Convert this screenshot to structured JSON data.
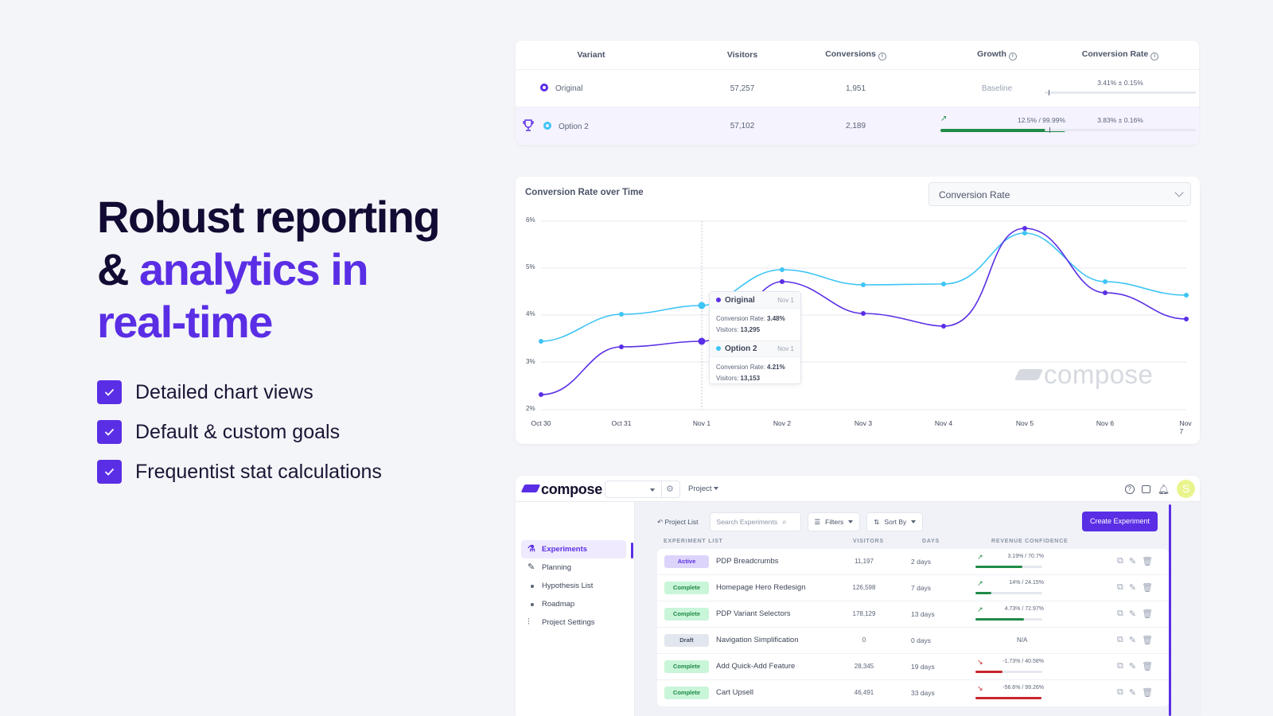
{
  "hero": {
    "title_line1": "Robust reporting",
    "title_amp": "& ",
    "title_accent1": "analytics in",
    "title_accent2": "real-time",
    "accent_color": "#5a2ee5",
    "features": [
      "Detailed chart views",
      "Default & custom goals",
      "Frequentist stat calculations"
    ]
  },
  "variants_table": {
    "headers": {
      "variant": "Variant",
      "visitors": "Visitors",
      "conversions": "Conversions",
      "growth": "Growth",
      "rate": "Conversion Rate"
    },
    "rows": [
      {
        "name": "Original",
        "visitors": "57,257",
        "conversions": "1,951",
        "growth": "Baseline",
        "rate": "3.41% ± 0.15%",
        "color": "#5a2ee5",
        "winner": false
      },
      {
        "name": "Option 2",
        "visitors": "57,102",
        "conversions": "2,189",
        "growth": "12.5% / 99.99%",
        "growth_pct": 100,
        "rate": "3.83% ± 0.16%",
        "color": "#3ec4f5",
        "winner": true
      }
    ]
  },
  "chart": {
    "title": "Conversion Rate over Time",
    "metric_select": "Conversion Rate",
    "watermark": "compose",
    "tooltip": {
      "original": {
        "label": "Original",
        "date": "Nov 1",
        "rate_label": "Conversion Rate:",
        "rate": "3.48%",
        "visitors_label": "Visitors:",
        "visitors": "13,295"
      },
      "option2": {
        "label": "Option 2",
        "date": "Nov 1",
        "rate_label": "Conversion Rate:",
        "rate": "4.21%",
        "visitors_label": "Visitors:",
        "visitors": "13,153"
      }
    }
  },
  "chart_data": {
    "type": "line",
    "title": "Conversion Rate over Time",
    "x": [
      "Oct 30",
      "Oct 31",
      "Nov 1",
      "Nov 2",
      "Nov 3",
      "Nov 4",
      "Nov 5",
      "Nov 6",
      "Nov 7"
    ],
    "y_ticks": [
      "2%",
      "3%",
      "4%",
      "5%",
      "6%"
    ],
    "ylim": [
      2,
      6
    ],
    "series": [
      {
        "name": "Original",
        "color": "#5a2ee5",
        "values": [
          2.38,
          3.36,
          3.48,
          4.74,
          4.05,
          3.78,
          5.84,
          4.55,
          3.93
        ]
      },
      {
        "name": "Option 2",
        "color": "#3ec4f5",
        "values": [
          3.4,
          4.03,
          4.21,
          4.99,
          4.66,
          4.68,
          5.73,
          4.74,
          4.44
        ]
      }
    ],
    "grid": true
  },
  "app": {
    "brand": "compose",
    "project_label": "Project",
    "avatar_letter": "S",
    "sidebar": [
      {
        "label": "Experiments",
        "icon": "flask-icon",
        "active": true
      },
      {
        "label": "Planning",
        "icon": "edit-icon"
      },
      {
        "label": "Hypothesis List",
        "icon": "bullet"
      },
      {
        "label": "Roadmap",
        "icon": "bullet"
      },
      {
        "label": "Project Settings",
        "icon": "sliders-icon"
      }
    ],
    "back_label": "Project List",
    "search_placeholder": "Search Experiments",
    "filters_label": "Filters",
    "sort_label": "Sort By",
    "create_label": "Create Experiment",
    "list_headers": {
      "name": "EXPERIMENT LIST",
      "visitors": "VISITORS",
      "days": "DAYS",
      "confidence": "REVENUE CONFIDENCE"
    },
    "experiments": [
      {
        "status": "Active",
        "name": "PDP Breadcrumbs",
        "visitors": "11,197",
        "days": "2 days",
        "conf": "3.19% / 70.7%",
        "dir": "up",
        "pct": 70
      },
      {
        "status": "Complete",
        "name": "Homepage Hero Redesign",
        "visitors": "126,598",
        "days": "7 days",
        "conf": "14% / 24.15%",
        "dir": "up",
        "pct": 24
      },
      {
        "status": "Complete",
        "name": "PDP Variant Selectors",
        "visitors": "178,129",
        "days": "13 days",
        "conf": "4.73% / 72.97%",
        "dir": "up",
        "pct": 73
      },
      {
        "status": "Draft",
        "name": "Navigation Simplification",
        "visitors": "0",
        "days": "0 days",
        "conf": "N/A",
        "dir": "none",
        "pct": 0
      },
      {
        "status": "Complete",
        "name": "Add Quick-Add Feature",
        "visitors": "28,345",
        "days": "19 days",
        "conf": "-1.73% / 40.58%",
        "dir": "down",
        "pct": 40
      },
      {
        "status": "Complete",
        "name": "Cart Upsell",
        "visitors": "46,491",
        "days": "33 days",
        "conf": "-56.6% / 99.26%",
        "dir": "down",
        "pct": 99
      }
    ]
  }
}
